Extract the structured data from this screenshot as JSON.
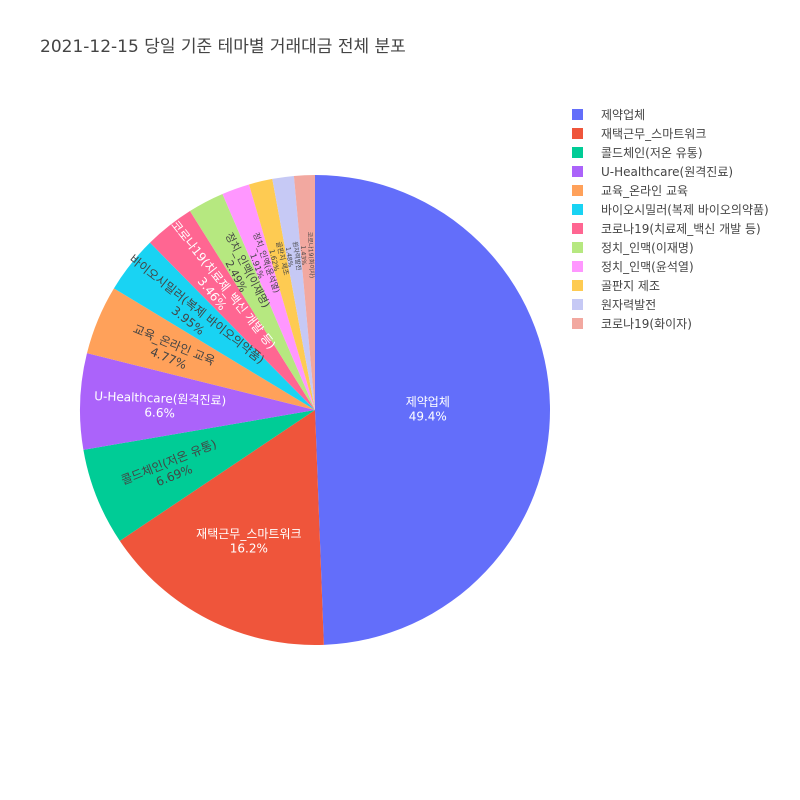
{
  "chart_data": {
    "type": "pie",
    "title": "2021-12-15 당일 기준 테마별 거래대금 전체 분포",
    "labels": [
      "제약업체",
      "재택근무_스마트워크",
      "콜드체인(저온 유통)",
      "U-Healthcare(원격진료)",
      "교육_온라인 교육",
      "바이오시밀러(복제 바이오의약품)",
      "코로나19(치료제_백신 개발 등)",
      "정치_인맥(이재명)",
      "정치_인맥(윤석열)",
      "골판지 제조",
      "원자력발전",
      "코로나19(화이자)"
    ],
    "values": [
      49.4,
      16.2,
      6.69,
      6.6,
      4.77,
      3.95,
      3.46,
      2.49,
      1.91,
      1.62,
      1.48,
      1.43
    ],
    "percent_labels": [
      "49.4%",
      "16.2%",
      "6.69%",
      "6.6%",
      "4.77%",
      "3.95%",
      "3.46%",
      "2.49%",
      "1.91%",
      "1.62%",
      "1.48%",
      "1.43%"
    ],
    "colors": [
      "#636efa",
      "#ef553b",
      "#00cc96",
      "#ab63fa",
      "#ffa15a",
      "#19d3f3",
      "#ff6692",
      "#b6e880",
      "#ff97ff",
      "#fecb52",
      "#c6c9f5",
      "#f2a8a0"
    ],
    "direction": "clockwise",
    "legend_placement": "right"
  }
}
